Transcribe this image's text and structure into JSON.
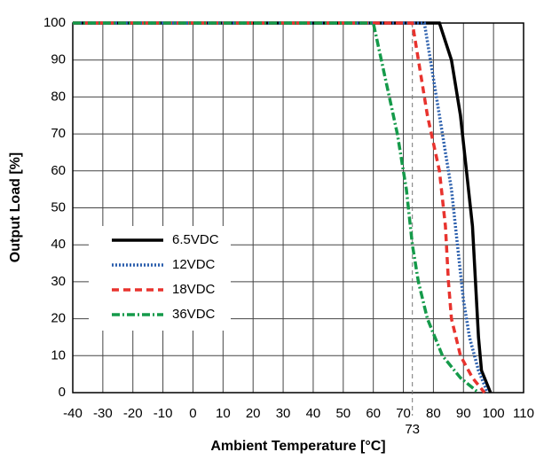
{
  "chart_data": {
    "type": "line",
    "xlabel": "Ambient Temperature [°C]",
    "ylabel": "Output Load [%]",
    "xlim": [
      -40,
      110
    ],
    "xticks": [
      -40,
      -30,
      -20,
      -10,
      0,
      10,
      20,
      30,
      40,
      50,
      60,
      70,
      80,
      90,
      100,
      110
    ],
    "ylim": [
      0,
      100
    ],
    "yticks": [
      0,
      10,
      20,
      30,
      40,
      50,
      60,
      70,
      80,
      90,
      100
    ],
    "grid": true,
    "legend": "left",
    "vline": 73,
    "series": [
      {
        "name": "6.5VDC",
        "color": "#000000",
        "style": "solid",
        "x": [
          -40,
          82,
          86,
          89,
          91,
          93,
          94,
          95,
          96,
          99
        ],
        "values": [
          100,
          100,
          90,
          75,
          60,
          45,
          30,
          15,
          6,
          0
        ]
      },
      {
        "name": "12VDC",
        "color": "#2b5fad",
        "style": "dotted",
        "x": [
          -40,
          77,
          80,
          83,
          86,
          88,
          90,
          92,
          95,
          98
        ],
        "values": [
          100,
          100,
          85,
          70,
          55,
          40,
          25,
          15,
          6,
          0
        ]
      },
      {
        "name": "18VDC",
        "color": "#e8332e",
        "style": "dashed",
        "x": [
          -40,
          73,
          75,
          78,
          82,
          84,
          85,
          86,
          89,
          93,
          97
        ],
        "values": [
          100,
          100,
          90,
          75,
          60,
          45,
          30,
          20,
          10,
          4,
          0
        ]
      },
      {
        "name": "36VDC",
        "color": "#159a4a",
        "style": "dashdot",
        "x": [
          -40,
          60,
          64,
          68,
          71,
          73,
          75,
          78,
          83,
          89,
          95
        ],
        "values": [
          100,
          100,
          85,
          70,
          55,
          40,
          30,
          20,
          10,
          4,
          0
        ]
      }
    ]
  }
}
